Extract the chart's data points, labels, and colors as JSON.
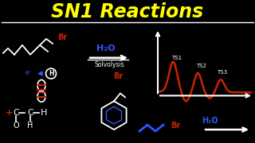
{
  "title": "SN1 Reactions",
  "title_color": "#FFFF00",
  "bg_color": "#000000",
  "white": "#FFFFFF",
  "red": "#CC2200",
  "blue": "#3355FF",
  "label_solvolysis": "Solvolysis",
  "label_h2o_1": "H₂O",
  "label_h2o_2": "H₂O",
  "label_br_1": "Br",
  "label_br_2": "Br",
  "label_br_3": "Br",
  "label_ts1": "TS1",
  "label_ts2": "TS2",
  "label_ts3": "TS3",
  "label_plus": "+",
  "label_C1": "C",
  "label_C2": "C",
  "label_H1": "H",
  "label_H2": "H",
  "label_H3": "H",
  "label_O": "O",
  "label_e": "e⁻"
}
